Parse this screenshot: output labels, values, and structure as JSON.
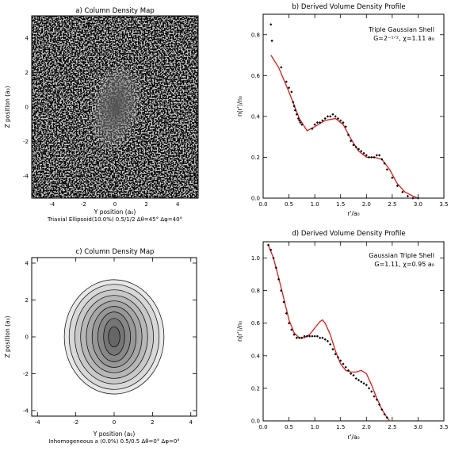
{
  "chart_data": [
    {
      "panel": "a",
      "type": "heatmap",
      "title": "a) Column Density Map",
      "xlabel": "Y position (a₀)",
      "ylabel": "Z position (a₀)",
      "xlim": [
        -5.3,
        5.3
      ],
      "ylim": [
        -5.3,
        5.3
      ],
      "xticks": [
        -4,
        -2,
        0,
        2,
        4
      ],
      "yticks": [
        -4,
        -2,
        0,
        2,
        4
      ],
      "caption": "Triaxial Ellipsoid(10.0%) 0.5/1/2 Δθ=45° Δφ=40°"
    },
    {
      "panel": "b",
      "type": "scatter",
      "title": "b) Derived Volume Density Profile",
      "xlabel": "r'/a₀",
      "ylabel": "n(r')/n₀",
      "xlim": [
        0,
        3.5
      ],
      "ylim": [
        0,
        0.9
      ],
      "xticks": [
        0.0,
        0.5,
        1.0,
        1.5,
        2.0,
        2.5,
        3.0,
        3.5
      ],
      "yticks": [
        0.0,
        0.2,
        0.4,
        0.6,
        0.8
      ],
      "annotation_line1": "Triple Gaussian Shell",
      "annotation_line2": "G=2⁻¹ᐟ², χ=1.11 a₀",
      "series": [
        {
          "kind": "line",
          "color": "#e01818",
          "x": [
            0.15,
            0.3,
            0.5,
            0.7,
            0.85,
            1.0,
            1.2,
            1.4,
            1.55,
            1.7,
            1.85,
            2.0,
            2.15,
            2.3,
            2.45,
            2.6,
            2.75,
            2.9,
            3.0
          ],
          "y": [
            0.7,
            0.64,
            0.52,
            0.39,
            0.33,
            0.35,
            0.38,
            0.39,
            0.36,
            0.29,
            0.23,
            0.2,
            0.2,
            0.19,
            0.14,
            0.07,
            0.03,
            0.01,
            0.0
          ]
        },
        {
          "kind": "points",
          "x": [
            0.15,
            0.17,
            0.35,
            0.45,
            0.5,
            0.55,
            0.58,
            0.6,
            0.62,
            0.65,
            0.68,
            0.7,
            0.72,
            0.75,
            0.95,
            1.0,
            1.05,
            1.1,
            1.15,
            1.2,
            1.25,
            1.3,
            1.35,
            1.4,
            1.45,
            1.5,
            1.55,
            1.6,
            1.65,
            1.7,
            1.75,
            1.8,
            1.85,
            1.9,
            1.95,
            2.0,
            2.05,
            2.1,
            2.15,
            2.2,
            2.25,
            2.3,
            2.35,
            2.4,
            2.5,
            2.6,
            2.7,
            2.8,
            2.9,
            3.0
          ],
          "y": [
            0.85,
            0.77,
            0.64,
            0.57,
            0.54,
            0.52,
            0.47,
            0.45,
            0.43,
            0.41,
            0.39,
            0.38,
            0.37,
            0.36,
            0.34,
            0.36,
            0.37,
            0.37,
            0.38,
            0.39,
            0.4,
            0.4,
            0.41,
            0.4,
            0.39,
            0.38,
            0.37,
            0.35,
            0.31,
            0.28,
            0.26,
            0.25,
            0.24,
            0.23,
            0.22,
            0.21,
            0.2,
            0.2,
            0.2,
            0.21,
            0.21,
            0.19,
            0.17,
            0.14,
            0.1,
            0.06,
            0.03,
            0.01,
            0.0,
            0.0
          ]
        }
      ]
    },
    {
      "panel": "c",
      "type": "heatmap",
      "title": "c) Column Density Map",
      "xlabel": "Y position (a₀)",
      "ylabel": "Z position (a₀)",
      "xlim": [
        -4.3,
        4.3
      ],
      "ylim": [
        -4.3,
        4.3
      ],
      "xticks": [
        -4,
        -2,
        0,
        2,
        4
      ],
      "yticks": [
        -4,
        -2,
        0,
        2,
        4
      ],
      "contour_levels_radii_a0": [
        [
          2.6,
          3.1
        ],
        [
          2.35,
          2.85
        ],
        [
          2.05,
          2.55
        ],
        [
          1.75,
          2.25
        ],
        [
          1.45,
          1.95
        ],
        [
          1.15,
          1.65
        ],
        [
          0.85,
          1.35
        ],
        [
          0.55,
          1.0
        ],
        [
          0.3,
          0.55
        ]
      ],
      "caption": "Inhomogeneous a (0.0%) 0.5/0.5 Δθ=0° Δφ=0°"
    },
    {
      "panel": "d",
      "type": "scatter",
      "title": "d) Derived Volume Density Profile",
      "xlabel": "r'/a₀",
      "ylabel": "n(r')/n₀",
      "xlim": [
        0,
        3.5
      ],
      "ylim": [
        0,
        1.1
      ],
      "xticks": [
        0.0,
        0.5,
        1.0,
        1.5,
        2.0,
        2.5,
        3.0,
        3.5
      ],
      "yticks": [
        0.0,
        0.2,
        0.4,
        0.6,
        0.8,
        1.0
      ],
      "annotation_line1": "Gaussian Triple Shell",
      "annotation_line2": "G=1.11, χ=0.95 a₀",
      "series": [
        {
          "kind": "line",
          "color": "#e01818",
          "x": [
            0.1,
            0.2,
            0.3,
            0.4,
            0.5,
            0.6,
            0.7,
            0.8,
            0.9,
            1.0,
            1.1,
            1.15,
            1.2,
            1.3,
            1.4,
            1.5,
            1.6,
            1.7,
            1.8,
            1.9,
            2.0,
            2.1,
            2.2,
            2.3,
            2.4,
            2.45
          ],
          "y": [
            1.08,
            1.0,
            0.88,
            0.75,
            0.62,
            0.54,
            0.51,
            0.51,
            0.53,
            0.57,
            0.61,
            0.62,
            0.6,
            0.53,
            0.43,
            0.35,
            0.31,
            0.3,
            0.3,
            0.31,
            0.29,
            0.22,
            0.14,
            0.07,
            0.02,
            0.0
          ]
        },
        {
          "kind": "points",
          "x": [
            0.1,
            0.15,
            0.2,
            0.25,
            0.3,
            0.35,
            0.4,
            0.45,
            0.5,
            0.55,
            0.6,
            0.65,
            0.7,
            0.75,
            0.8,
            0.85,
            0.9,
            0.95,
            1.0,
            1.05,
            1.1,
            1.15,
            1.2,
            1.25,
            1.3,
            1.35,
            1.4,
            1.45,
            1.5,
            1.55,
            1.6,
            1.65,
            1.7,
            1.75,
            1.8,
            1.85,
            1.9,
            1.95,
            2.0,
            2.05,
            2.1,
            2.15,
            2.2,
            2.25,
            2.3,
            2.35,
            2.4
          ],
          "y": [
            1.08,
            1.05,
            1.0,
            0.94,
            0.87,
            0.8,
            0.73,
            0.66,
            0.6,
            0.56,
            0.53,
            0.51,
            0.51,
            0.51,
            0.52,
            0.52,
            0.52,
            0.52,
            0.52,
            0.52,
            0.51,
            0.51,
            0.5,
            0.49,
            0.47,
            0.44,
            0.41,
            0.39,
            0.37,
            0.35,
            0.33,
            0.31,
            0.29,
            0.28,
            0.26,
            0.25,
            0.24,
            0.23,
            0.22,
            0.2,
            0.18,
            0.15,
            0.13,
            0.1,
            0.07,
            0.04,
            0.02
          ]
        }
      ]
    }
  ]
}
